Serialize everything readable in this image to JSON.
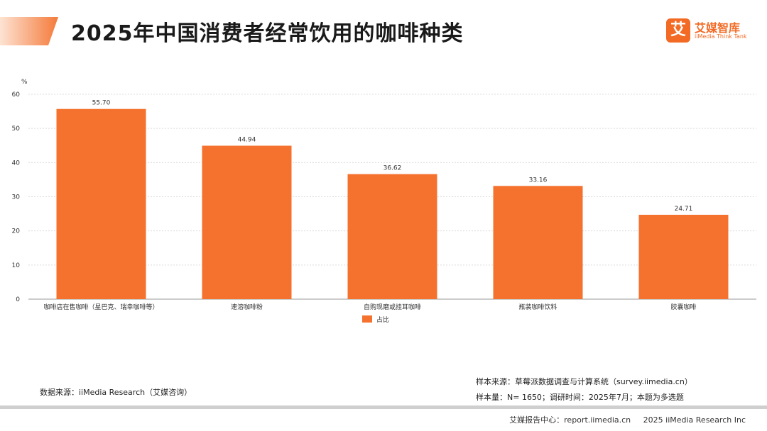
{
  "header": {
    "title": "2025年中国消费者经常饮用的咖啡种类"
  },
  "logo": {
    "mark": "艾",
    "name_cn": "艾媒智库",
    "name_en": "iiMedia Think Tank"
  },
  "chart_data": {
    "type": "bar",
    "title": "",
    "ylabel": "%",
    "xlabel": "",
    "ylim": [
      0,
      60
    ],
    "yticks": [
      0,
      10,
      20,
      30,
      40,
      50,
      60
    ],
    "categories": [
      "咖啡店在售咖啡（星巴克、瑞幸咖啡等）",
      "速溶咖啡粉",
      "自购现磨或挂耳咖啡",
      "瓶装咖啡饮料",
      "胶囊咖啡"
    ],
    "series": [
      {
        "name": "占比",
        "values": [
          55.7,
          44.94,
          36.62,
          33.16,
          24.71
        ]
      }
    ],
    "value_labels": [
      "55.70",
      "44.94",
      "36.62",
      "33.16",
      "24.71"
    ],
    "grid": true,
    "legend": "bottom",
    "color": "#f5722e"
  },
  "footer": {
    "source": "数据来源：iiMedia Research（艾媒咨询）",
    "sample_source": "样本来源：草莓派数据调查与计算系统（survey.iimedia.cn）",
    "sample_info": "样本量：N= 1650；调研时间：2025年7月；本题为多选题",
    "report_center": "艾媒报告中心：report.iimedia.cn",
    "copyright": "2025 iiMedia Research Inc"
  }
}
